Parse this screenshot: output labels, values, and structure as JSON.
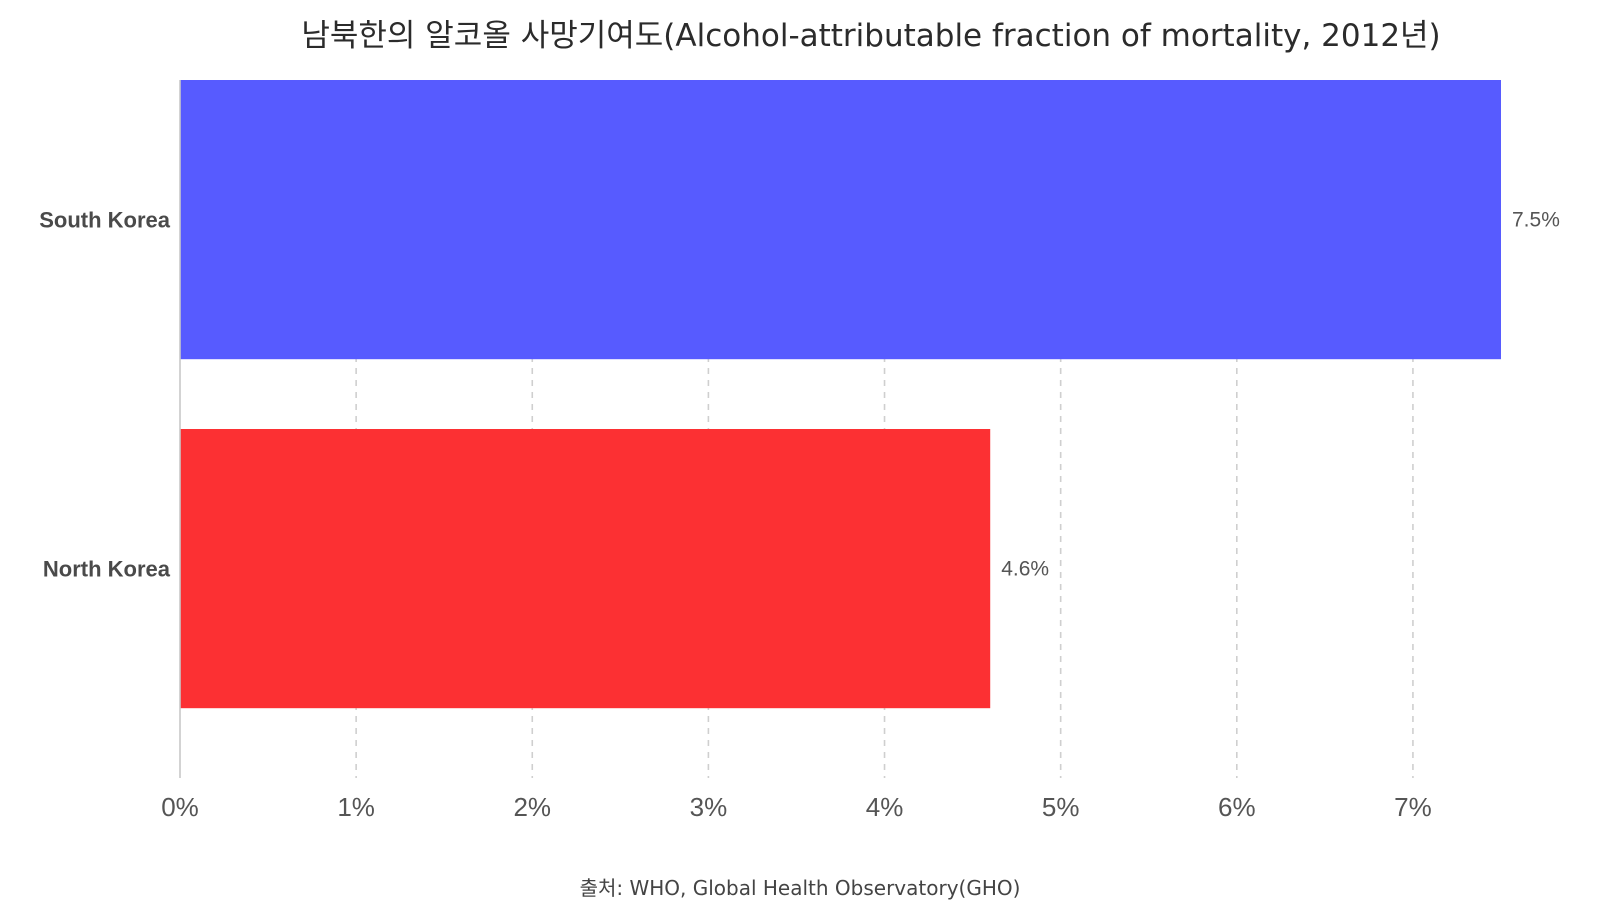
{
  "chart_data": {
    "type": "bar",
    "orientation": "horizontal",
    "title": "남북한의 알코올 사망기여도(Alcohol-attributable fraction of mortality, 2012년)",
    "categories": [
      "South Korea",
      "North Korea"
    ],
    "values": [
      7.5,
      4.6
    ],
    "value_labels": [
      "7.5%",
      "4.6%"
    ],
    "colors": [
      "#575bff",
      "#fc3033"
    ],
    "xlim": [
      0,
      7.5
    ],
    "xticks": [
      0,
      1,
      2,
      3,
      4,
      5,
      6,
      7
    ],
    "xtick_labels": [
      "0%",
      "1%",
      "2%",
      "3%",
      "4%",
      "5%",
      "6%",
      "7%"
    ],
    "xlabel": "",
    "ylabel": "",
    "grid": "vertical dashed",
    "source": "출처: WHO, Global Health Observatory(GHO)"
  }
}
